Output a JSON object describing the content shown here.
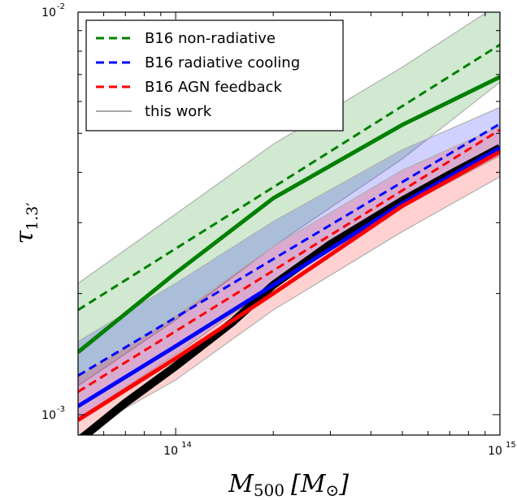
{
  "chart_data": {
    "type": "line",
    "xscale": "log",
    "yscale": "log",
    "xlim": [
      50000000000000,
      1000000000000000
    ],
    "ylim": [
      0.00089,
      0.01
    ],
    "grid": false,
    "legend_placement": "top-left",
    "xlabel": {
      "main": "M",
      "sub": "500",
      "unit_open": "[M",
      "unit_sub": "⊙",
      "unit_close": "]"
    },
    "ylabel": {
      "main": "τ",
      "sub": "1.3′"
    },
    "x_ticks": [
      {
        "value": 100000000000000,
        "base": "10",
        "exp": "14"
      },
      {
        "value": 1000000000000000,
        "base": "10",
        "exp": "15"
      }
    ],
    "y_ticks": [
      {
        "value": 0.001,
        "base": "10",
        "exp": "-3"
      },
      {
        "value": 0.01,
        "base": "10",
        "exp": "-2"
      }
    ],
    "x_minor_ticks": [
      60000000000000,
      70000000000000,
      80000000000000,
      90000000000000,
      200000000000000,
      300000000000000,
      400000000000000,
      500000000000000,
      600000000000000,
      700000000000000,
      800000000000000,
      900000000000000
    ],
    "y_minor_ticks": [
      0.002,
      0.003,
      0.004,
      0.005,
      0.006,
      0.007,
      0.008,
      0.009
    ],
    "legend": [
      {
        "label": "B16 non-radiative",
        "color": "#008000",
        "style": "dashed"
      },
      {
        "label": "B16 radiative cooling",
        "color": "#0000ff",
        "style": "dashed"
      },
      {
        "label": "B16 AGN feedback",
        "color": "#ff0000",
        "style": "dashed"
      },
      {
        "label": "this work",
        "color": "#888888",
        "style": "solid"
      }
    ],
    "series": [
      {
        "key": "nonrad_band",
        "kind": "band",
        "color": "#008000",
        "opacity": 0.18,
        "x": [
          50000000000000,
          100000000000000,
          200000000000000,
          500000000000000,
          1000000000000000
        ],
        "lower": [
          0.00118,
          0.00172,
          0.00262,
          0.00432,
          0.0067
        ],
        "upper": [
          0.00212,
          0.00315,
          0.0047,
          0.0073,
          0.0105
        ]
      },
      {
        "key": "rad_band",
        "kind": "band",
        "color": "#0000ff",
        "opacity": 0.18,
        "x": [
          50000000000000,
          100000000000000,
          200000000000000,
          500000000000000,
          1000000000000000
        ],
        "lower": [
          0.00098,
          0.00141,
          0.0021,
          0.00328,
          0.0044
        ],
        "upper": [
          0.00152,
          0.00212,
          0.00302,
          0.00455,
          0.0058
        ]
      },
      {
        "key": "agn_band",
        "kind": "band",
        "color": "#ff0000",
        "opacity": 0.18,
        "x": [
          50000000000000,
          100000000000000,
          200000000000000,
          500000000000000,
          1000000000000000
        ],
        "lower": [
          0.00089,
          0.00122,
          0.00182,
          0.00285,
          0.0039
        ],
        "upper": [
          0.00124,
          0.00176,
          0.00262,
          0.00405,
          0.0052
        ]
      },
      {
        "key": "this_work",
        "kind": "line",
        "color": "#000000",
        "width": 10,
        "x": [
          50000000000000,
          70000000000000,
          100000000000000,
          150000000000000,
          200000000000000,
          300000000000000,
          500000000000000,
          700000000000000,
          1000000000000000
        ],
        "y": [
          0.00086,
          0.00107,
          0.00132,
          0.0017,
          0.0021,
          0.00265,
          0.0034,
          0.00395,
          0.0046
        ]
      },
      {
        "key": "nonrad_solid",
        "kind": "line",
        "color": "#008000",
        "width": 5,
        "x": [
          50000000000000,
          100000000000000,
          200000000000000,
          500000000000000,
          1000000000000000
        ],
        "y": [
          0.00143,
          0.00225,
          0.00345,
          0.00525,
          0.0069
        ]
      },
      {
        "key": "rad_solid",
        "kind": "line",
        "color": "#0000ff",
        "width": 5,
        "x": [
          50000000000000,
          100000000000000,
          200000000000000,
          500000000000000,
          1000000000000000
        ],
        "y": [
          0.00105,
          0.00148,
          0.0021,
          0.00335,
          0.0046
        ]
      },
      {
        "key": "agn_solid",
        "kind": "line",
        "color": "#ff0000",
        "width": 5,
        "x": [
          50000000000000,
          100000000000000,
          200000000000000,
          500000000000000,
          1000000000000000
        ],
        "y": [
          0.00097,
          0.00138,
          0.002,
          0.0033,
          0.0045
        ]
      },
      {
        "key": "nonrad_dashed",
        "kind": "dashed",
        "color": "#008000",
        "width": 3,
        "x": [
          50000000000000,
          1000000000000000
        ],
        "y": [
          0.00182,
          0.0083
        ]
      },
      {
        "key": "rad_dashed",
        "kind": "dashed",
        "color": "#0000ff",
        "width": 3,
        "x": [
          50000000000000,
          1000000000000000
        ],
        "y": [
          0.00125,
          0.00528
        ]
      },
      {
        "key": "agn_dashed",
        "kind": "dashed",
        "color": "#ff0000",
        "width": 3,
        "x": [
          50000000000000,
          1000000000000000
        ],
        "y": [
          0.00114,
          0.0051
        ]
      }
    ]
  }
}
